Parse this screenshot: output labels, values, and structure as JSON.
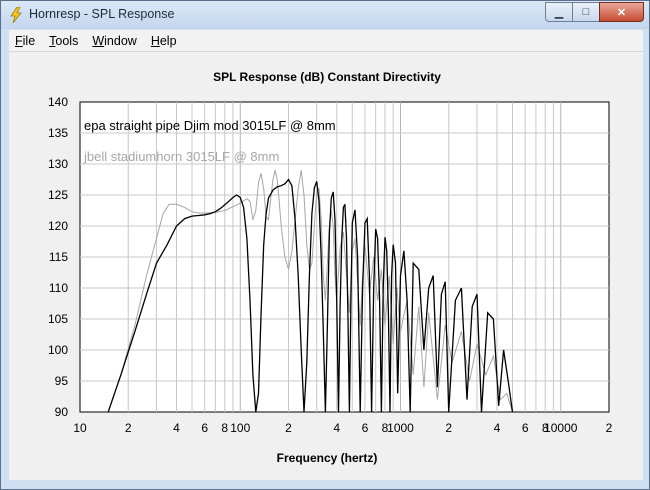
{
  "window": {
    "title": "Hornresp - SPL Response",
    "controls": {
      "minimize": "▁",
      "maximize": "□",
      "close": "✕"
    }
  },
  "menu": [
    {
      "label": "File",
      "underline": "F"
    },
    {
      "label": "Tools",
      "underline": "T"
    },
    {
      "label": "Window",
      "underline": "W"
    },
    {
      "label": "Help",
      "underline": "H"
    }
  ],
  "chart_data": {
    "type": "line",
    "title": "SPL Response (dB)   Constant Directivity",
    "xlabel": "Frequency (hertz)",
    "ylabel": "",
    "x_scale": "log",
    "xlim": [
      10,
      20000
    ],
    "ylim": [
      90,
      140
    ],
    "y_ticks": [
      90,
      95,
      100,
      105,
      110,
      115,
      120,
      125,
      130,
      135,
      140
    ],
    "x_tick_labels": [
      {
        "x": 10,
        "label": "10"
      },
      {
        "x": 20,
        "label": "2"
      },
      {
        "x": 40,
        "label": "4"
      },
      {
        "x": 60,
        "label": "6"
      },
      {
        "x": 80,
        "label": "8"
      },
      {
        "x": 100,
        "label": "100"
      },
      {
        "x": 200,
        "label": "2"
      },
      {
        "x": 400,
        "label": "4"
      },
      {
        "x": 600,
        "label": "6"
      },
      {
        "x": 800,
        "label": "8"
      },
      {
        "x": 1000,
        "label": "1000"
      },
      {
        "x": 2000,
        "label": "2"
      },
      {
        "x": 4000,
        "label": "4"
      },
      {
        "x": 6000,
        "label": "6"
      },
      {
        "x": 8000,
        "label": "8"
      },
      {
        "x": 10000,
        "label": "10000"
      },
      {
        "x": 20000,
        "label": "2"
      }
    ],
    "grid": true,
    "colors": {
      "series1": "#000000",
      "series2": "#a6a6a6",
      "grid": "#c8c8c8",
      "plot_bg": "#ffffff"
    },
    "series": [
      {
        "name": "epa straight pipe Djim mod 3015LF @ 8mm",
        "color": "#000000",
        "x": [
          15,
          18,
          22,
          26,
          30,
          35,
          40,
          45,
          50,
          55,
          60,
          65,
          70,
          75,
          80,
          85,
          90,
          95,
          100,
          105,
          110,
          115,
          120,
          125,
          130,
          135,
          140,
          145,
          150,
          160,
          170,
          180,
          190,
          200,
          210,
          220,
          230,
          240,
          250,
          260,
          270,
          280,
          290,
          300,
          310,
          320,
          330,
          340,
          350,
          360,
          370,
          380,
          390,
          400,
          410,
          420,
          430,
          440,
          450,
          460,
          470,
          480,
          490,
          500,
          520,
          540,
          560,
          580,
          600,
          620,
          640,
          660,
          680,
          700,
          720,
          740,
          760,
          780,
          800,
          820,
          840,
          860,
          880,
          900,
          930,
          960,
          1000,
          1050,
          1100,
          1150,
          1200,
          1300,
          1400,
          1500,
          1600,
          1700,
          1800,
          1900,
          2000,
          2200,
          2400,
          2600,
          2800,
          3000,
          3200,
          3500,
          3800,
          4100,
          4400,
          4700,
          5000
        ],
        "y": [
          90,
          96,
          103,
          109,
          114,
          117,
          120,
          121.2,
          121.6,
          121.7,
          121.8,
          122,
          122.3,
          122.8,
          123.4,
          124,
          124.6,
          125,
          124.6,
          123,
          118,
          108,
          96,
          90,
          93,
          106,
          117,
          122,
          124.5,
          125.8,
          126.3,
          126.5,
          126.8,
          127.5,
          126.5,
          121,
          112,
          100,
          90,
          98,
          112,
          122,
          126.2,
          127.2,
          124,
          115,
          103,
          90,
          104,
          119,
          124.5,
          125.5,
          121,
          108,
          90,
          107,
          118,
          123,
          123.5,
          118,
          105,
          90,
          108,
          120.5,
          122.6,
          115,
          90,
          110,
          120.5,
          121.2,
          112,
          90,
          110,
          119.5,
          118,
          108,
          90,
          110,
          118.2,
          116,
          106,
          90,
          112,
          117,
          114,
          93,
          112,
          116,
          108,
          90,
          114,
          113,
          100,
          110,
          112,
          94,
          109,
          111,
          90,
          108,
          110,
          92,
          107,
          109,
          90,
          106,
          105,
          91,
          100,
          95,
          90
        ]
      },
      {
        "name": "jbell stadiumhorn 3015LF @ 8mm",
        "color": "#a6a6a6",
        "x": [
          15,
          18,
          22,
          26,
          30,
          33,
          36,
          40,
          45,
          50,
          55,
          60,
          70,
          80,
          90,
          100,
          110,
          115,
          120,
          125,
          130,
          135,
          140,
          145,
          150,
          155,
          160,
          165,
          170,
          175,
          180,
          190,
          200,
          210,
          220,
          230,
          240,
          250,
          260,
          270,
          280,
          290,
          300,
          310,
          320,
          330,
          340,
          350,
          360,
          370,
          380,
          390,
          400,
          420,
          440,
          460,
          480,
          500,
          520,
          540,
          560,
          580,
          600,
          640,
          680,
          720,
          760,
          800,
          850,
          900,
          950,
          1000,
          1100,
          1200,
          1300,
          1400,
          1500,
          1700,
          1900,
          2100,
          2400,
          2700,
          3000,
          3400,
          3800,
          4200,
          4600,
          5000
        ],
        "y": [
          90,
          96,
          104,
          112,
          118,
          122,
          123.5,
          123.5,
          123,
          122.3,
          122.1,
          122.1,
          122.2,
          122.5,
          123.1,
          123.7,
          124.4,
          124,
          121,
          122.5,
          127,
          128.5,
          126,
          121.5,
          121,
          124.5,
          127.5,
          129,
          127.5,
          124,
          120,
          115,
          113,
          116,
          121,
          126,
          129,
          125,
          117,
          113,
          114,
          120,
          125.5,
          126,
          121,
          112,
          108,
          114,
          120,
          122.5,
          120,
          112,
          108,
          116.5,
          119,
          112,
          106,
          116,
          118,
          111,
          104,
          112,
          117,
          109,
          115,
          108,
          113,
          104,
          112,
          101,
          110,
          103,
          108,
          96,
          107,
          94,
          106,
          92,
          104,
          98,
          103,
          95,
          101,
          96,
          99,
          92,
          93,
          90
        ]
      }
    ]
  }
}
